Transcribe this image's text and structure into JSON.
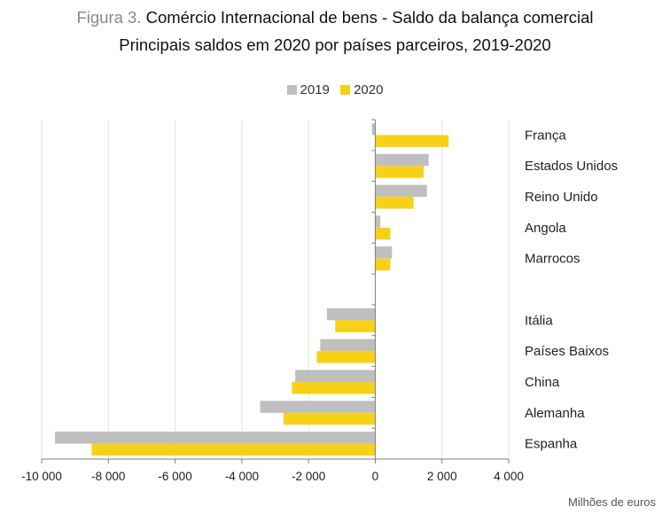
{
  "header": {
    "figure_label": "Figura 3.",
    "title": "Comércio Internacional de bens - Saldo da balança comercial",
    "subtitle": "Principais saldos em 2020 por países parceiros, 2019-2020"
  },
  "unit_label": "Milhões de euros",
  "chart_data": {
    "type": "bar",
    "orientation": "horizontal",
    "categories": [
      "França",
      "Estados Unidos",
      "Reino Unido",
      "Angola",
      "Marrocos",
      "",
      "Itália",
      "Países Baixos",
      "China",
      "Alemanha",
      "Espanha"
    ],
    "series": [
      {
        "name": "2019",
        "color": "#bfbfbf",
        "values": [
          -100,
          1600,
          1550,
          150,
          500,
          null,
          -1450,
          -1650,
          -2400,
          -3450,
          -9600
        ]
      },
      {
        "name": "2020",
        "color": "#f7d117",
        "values": [
          2200,
          1450,
          1150,
          450,
          450,
          null,
          -1200,
          -1750,
          -2500,
          -2750,
          -8500
        ]
      }
    ],
    "xlim": [
      -10000,
      4000
    ],
    "xticks": [
      -10000,
      -8000,
      -6000,
      -4000,
      -2000,
      0,
      2000,
      4000
    ],
    "xtick_labels": [
      "-10 000",
      "-8 000",
      "-6 000",
      "-4 000",
      "-2 000",
      "0",
      "2 000",
      "4 000"
    ],
    "grid": true,
    "legend_position": "top"
  }
}
